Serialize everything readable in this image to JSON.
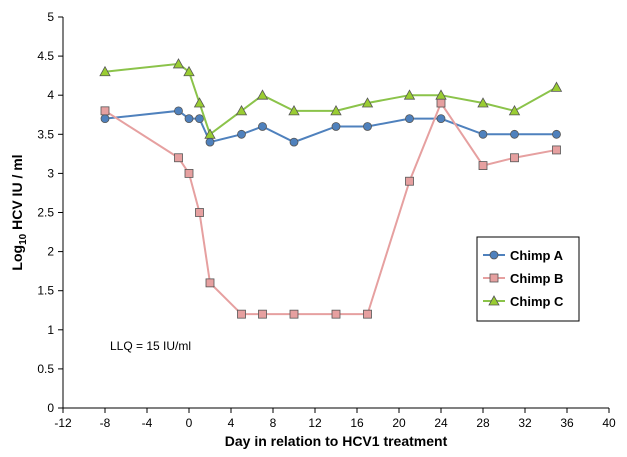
{
  "chart_data": {
    "type": "line",
    "xlabel": "Day in relation to HCV1 treatment",
    "ylabel_main": "Log",
    "ylabel_sub": "10",
    "ylabel_rest": " HCV IU / ml",
    "xlim": [
      -12,
      40
    ],
    "ylim": [
      0,
      5
    ],
    "xticks": [
      -12,
      -8,
      -4,
      0,
      4,
      8,
      12,
      16,
      20,
      24,
      28,
      32,
      36,
      40
    ],
    "yticks": [
      0,
      0.5,
      1,
      1.5,
      2,
      2.5,
      3,
      3.5,
      4,
      4.5,
      5
    ],
    "ytick_labels": [
      "0",
      "0.5",
      "1",
      "1.5",
      "2",
      "2.5",
      "3",
      "3.5",
      "4",
      "4.5",
      "5"
    ],
    "grid": false,
    "legend_position": "right-middle",
    "annotation": "LLQ = 15 IU/ml",
    "series": [
      {
        "name": "Chimp A",
        "marker": "circle",
        "line_color": "#4F81BD",
        "marker_fill": "#4F81BD",
        "x": [
          -8,
          -1,
          0,
          1,
          2,
          5,
          7,
          10,
          14,
          17,
          21,
          24,
          28,
          31,
          35
        ],
        "y": [
          3.7,
          3.8,
          3.7,
          3.7,
          3.4,
          3.5,
          3.6,
          3.4,
          3.6,
          3.6,
          3.7,
          3.7,
          3.5,
          3.5,
          3.5
        ]
      },
      {
        "name": "Chimp B",
        "marker": "square",
        "line_color": "#E6A0A0",
        "marker_fill": "#E6A0A0",
        "x": [
          -8,
          -1,
          0,
          1,
          2,
          5,
          7,
          10,
          14,
          17,
          21,
          24,
          28,
          31,
          35
        ],
        "y": [
          3.8,
          3.2,
          3.0,
          2.5,
          1.6,
          1.2,
          1.2,
          1.2,
          1.2,
          1.2,
          2.9,
          3.9,
          3.1,
          3.2,
          3.3
        ]
      },
      {
        "name": "Chimp C",
        "marker": "triangle",
        "line_color": "#8BC34A",
        "marker_fill": "#9ACD32",
        "x": [
          -8,
          -1,
          0,
          1,
          2,
          5,
          7,
          10,
          14,
          17,
          21,
          24,
          28,
          31,
          35
        ],
        "y": [
          4.3,
          4.4,
          4.3,
          3.9,
          3.5,
          3.8,
          4.0,
          3.8,
          3.8,
          3.9,
          4.0,
          4.0,
          3.9,
          3.8,
          4.1
        ]
      }
    ]
  }
}
